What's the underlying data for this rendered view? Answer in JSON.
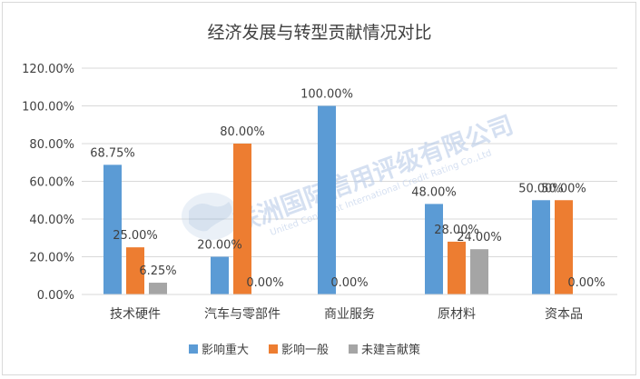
{
  "chart_data": {
    "type": "bar",
    "title": "经济发展与转型贡献情况对比",
    "categories": [
      "技术硬件",
      "汽车与零部件",
      "商业服务",
      "原材料",
      "资本品"
    ],
    "series": [
      {
        "name": "影响重大",
        "color": "#5b9bd5",
        "values": [
          68.75,
          20.0,
          100.0,
          48.0,
          50.0
        ],
        "labels": [
          "68.75%",
          "20.00%",
          "100.00%",
          "48.00%",
          "50.00%"
        ]
      },
      {
        "name": "影响一般",
        "color": "#ed7d31",
        "values": [
          25.0,
          80.0,
          0.0,
          28.0,
          50.0
        ],
        "labels": [
          "25.00%",
          "80.00%",
          "0.00%",
          "28.00%",
          "50.00%"
        ]
      },
      {
        "name": "未建言献策",
        "color": "#a5a5a5",
        "values": [
          6.25,
          0.0,
          0.0,
          24.0,
          0.0
        ],
        "labels": [
          "6.25%",
          "0.00%",
          "",
          "24.00%",
          "0.00%"
        ]
      }
    ],
    "ylim": [
      0,
      120
    ],
    "yticks": [
      "0.00%",
      "20.00%",
      "40.00%",
      "60.00%",
      "80.00%",
      "100.00%",
      "120.00%"
    ],
    "grid": true,
    "legend_position": "bottom"
  },
  "watermark": {
    "text": "联洲国际信用评级有限公司",
    "subtext": "United Continent International Credit Rating Co.,Ltd"
  }
}
